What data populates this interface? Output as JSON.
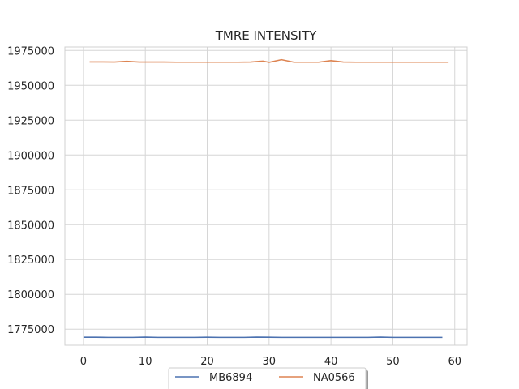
{
  "chart_data": {
    "type": "line",
    "title": "TMRE INTENSITY",
    "xlabel": "",
    "ylabel": "",
    "xlim": [
      -3,
      62
    ],
    "ylim": [
      1763500,
      1977500
    ],
    "xticks": [
      0,
      10,
      20,
      30,
      40,
      50,
      60
    ],
    "yticks": [
      1775000,
      1800000,
      1825000,
      1850000,
      1875000,
      1900000,
      1925000,
      1950000,
      1975000
    ],
    "grid": true,
    "legend_position": "bottom-center",
    "series": [
      {
        "name": "MB6894",
        "color": "#4c72b0",
        "x": [
          0,
          2,
          4,
          6,
          8,
          10,
          12,
          14,
          16,
          18,
          20,
          22,
          24,
          26,
          28,
          30,
          32,
          34,
          36,
          38,
          40,
          42,
          44,
          46,
          48,
          50,
          52,
          54,
          56,
          58
        ],
        "values": [
          1769200,
          1769200,
          1769100,
          1769100,
          1769100,
          1769300,
          1769100,
          1769100,
          1769100,
          1769100,
          1769200,
          1769100,
          1769100,
          1769100,
          1769300,
          1769200,
          1769100,
          1769100,
          1769100,
          1769100,
          1769100,
          1769100,
          1769100,
          1769100,
          1769300,
          1769100,
          1769100,
          1769100,
          1769100,
          1769100
        ]
      },
      {
        "name": "NA0566",
        "color": "#dd8452",
        "x": [
          1,
          3,
          5,
          7,
          9,
          11,
          13,
          15,
          17,
          19,
          21,
          23,
          25,
          27,
          29,
          30,
          32,
          34,
          36,
          38,
          40,
          42,
          44,
          46,
          48,
          50,
          52,
          54,
          56,
          58,
          59
        ],
        "values": [
          1966800,
          1966800,
          1966700,
          1967200,
          1966700,
          1966700,
          1966700,
          1966600,
          1966600,
          1966600,
          1966600,
          1966600,
          1966600,
          1966700,
          1967400,
          1966500,
          1968400,
          1966600,
          1966600,
          1966600,
          1967700,
          1966700,
          1966600,
          1966600,
          1966600,
          1966600,
          1966600,
          1966600,
          1966600,
          1966600,
          1966600
        ]
      }
    ]
  }
}
